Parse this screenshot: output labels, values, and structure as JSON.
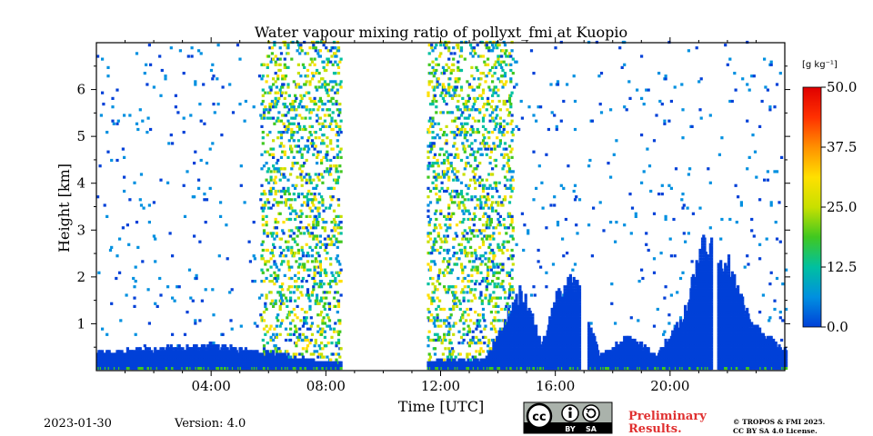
{
  "chart_data": {
    "type": "heatmap",
    "title": "Water vapour mixing ratio of pollyxt_fmi at Kuopio",
    "xlabel": "Time [UTC]",
    "ylabel": "Height [km]",
    "xlim_hours": [
      0,
      24
    ],
    "ylim_km": [
      0,
      7
    ],
    "x_ticks": [
      {
        "value": 4,
        "label": "04:00"
      },
      {
        "value": 8,
        "label": "08:00"
      },
      {
        "value": 12,
        "label": "12:00"
      },
      {
        "value": 16,
        "label": "16:00"
      },
      {
        "value": 20,
        "label": "20:00"
      }
    ],
    "y_ticks": [
      {
        "value": 1,
        "label": "1"
      },
      {
        "value": 2,
        "label": "2"
      },
      {
        "value": 3,
        "label": "3"
      },
      {
        "value": 4,
        "label": "4"
      },
      {
        "value": 5,
        "label": "5"
      },
      {
        "value": 6,
        "label": "6"
      }
    ],
    "colorbar": {
      "unit_label": "[g kg⁻¹]",
      "range": [
        0,
        50
      ],
      "ticks": [
        "0.0",
        "12.5",
        "25.0",
        "37.5",
        "50.0"
      ],
      "colors": [
        "#0040d8",
        "#0090e0",
        "#00c0a0",
        "#40c820",
        "#c8e000",
        "#ffe000",
        "#ff9000",
        "#ff3000",
        "#e00000"
      ]
    },
    "grid": false,
    "features": {
      "no_data_gaps_hours": [
        [
          8.5,
          11.5
        ],
        [
          16.8,
          17.1
        ],
        [
          21.4,
          21.6
        ]
      ],
      "boundary_layer_top_km": [
        [
          0.0,
          0.35
        ],
        [
          2.5,
          0.45
        ],
        [
          4.0,
          0.5
        ],
        [
          6.0,
          0.35
        ],
        [
          8.0,
          0.15
        ],
        [
          13.5,
          0.2
        ],
        [
          14.8,
          1.7
        ],
        [
          15.5,
          0.5
        ],
        [
          16.0,
          1.5
        ],
        [
          16.6,
          1.9
        ],
        [
          17.5,
          0.3
        ],
        [
          18.5,
          0.7
        ],
        [
          19.5,
          0.3
        ],
        [
          20.5,
          1.2
        ],
        [
          21.2,
          2.8
        ],
        [
          22.0,
          2.2
        ],
        [
          22.8,
          0.9
        ],
        [
          24.0,
          0.4
        ]
      ],
      "typical_value_gkg": 3
    }
  },
  "footer": {
    "date": "2023-01-30",
    "version": "Version: 4.0",
    "preliminary_line1": "Preliminary",
    "preliminary_line2": "Results.",
    "copyright_line1": "© TROPOS & FMI 2025.",
    "copyright_line2": "CC BY SA 4.0 License.",
    "license_badge": {
      "cc": "cc",
      "by": "BY",
      "sa": "SA"
    },
    "preliminary_color": "#e03030"
  }
}
